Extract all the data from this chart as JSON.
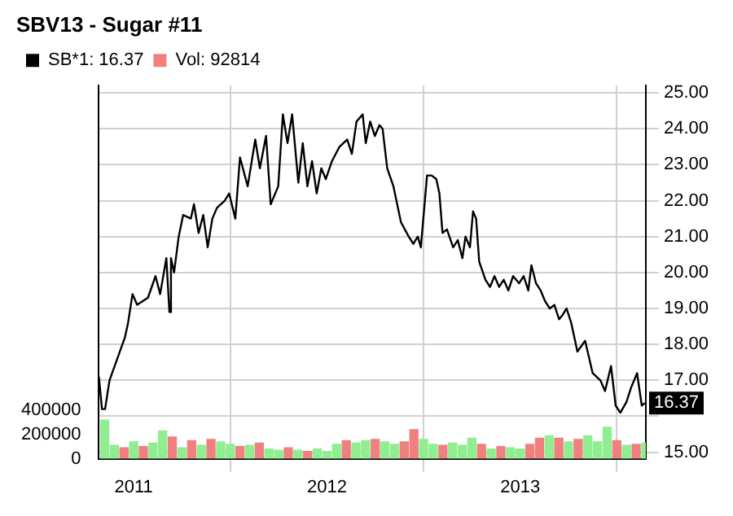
{
  "chart_data": {
    "type": "line",
    "title": "SBV13 - Sugar #11",
    "xlim": [
      2010.82,
      2013.65
    ],
    "xticks": [
      2011,
      2012,
      2013
    ],
    "ylim": [
      14.82,
      25.2
    ],
    "yticks": [
      {
        "value": 15,
        "label": "15.00"
      },
      {
        "value": 16,
        "label": null
      },
      {
        "value": 17,
        "label": "17.00"
      },
      {
        "value": 18,
        "label": "18.00"
      },
      {
        "value": 19,
        "label": "19.00"
      },
      {
        "value": 20,
        "label": "20.00"
      },
      {
        "value": 21,
        "label": "21.00"
      },
      {
        "value": 22,
        "label": "22.00"
      },
      {
        "value": 23,
        "label": "23.00"
      },
      {
        "value": 24,
        "label": "24.00"
      },
      {
        "value": 25,
        "label": "25.00"
      }
    ],
    "y2lim": [
      0,
      3090000
    ],
    "y2ticks": [
      0,
      200000,
      400000
    ],
    "grid": true,
    "legend": "top left",
    "marker": "none",
    "line_style": "solid",
    "annotations": [
      {
        "text": "16.37",
        "x": 2013.645,
        "y": 16.37
      }
    ],
    "series": [
      {
        "name": "SB*1: 16.37",
        "color": "#000000",
        "x": [
          2010.82,
          2010.836,
          2010.852,
          2010.875,
          2010.915,
          2010.955,
          2010.971,
          2010.994,
          2011.018,
          2011.074,
          2011.113,
          2011.137,
          2011.169,
          2011.185,
          2011.193,
          2011.209,
          2011.233,
          2011.256,
          2011.296,
          2011.312,
          2011.336,
          2011.36,
          2011.383,
          2011.407,
          2011.431,
          2011.471,
          2011.494,
          2011.526,
          2011.55,
          2011.59,
          2011.629,
          2011.653,
          2011.685,
          2011.709,
          2011.748,
          2011.772,
          2011.796,
          2011.82,
          2011.852,
          2011.875,
          2011.899,
          2011.923,
          2011.947,
          2011.971,
          2011.994,
          2012.026,
          2012.065,
          2012.105,
          2012.129,
          2012.153,
          2012.185,
          2012.201,
          2012.224,
          2012.248,
          2012.272,
          2012.288,
          2012.312,
          2012.344,
          2012.383,
          2012.423,
          2012.447,
          2012.47,
          2012.486,
          2012.518,
          2012.542,
          2012.566,
          2012.582,
          2012.598,
          2012.621,
          2012.653,
          2012.677,
          2012.701,
          2012.717,
          2012.74,
          2012.756,
          2012.772,
          2012.788,
          2012.82,
          2012.844,
          2012.867,
          2012.891,
          2012.915,
          2012.939,
          2012.963,
          2012.994,
          2013.018,
          2013.042,
          2013.058,
          2013.082,
          2013.106,
          2013.129,
          2013.153,
          2013.177,
          2013.201,
          2013.217,
          2013.24,
          2013.264,
          2013.296,
          2013.336,
          2013.375,
          2013.415,
          2013.439,
          2013.47,
          2013.494,
          2013.518,
          2013.55,
          2013.574,
          2013.605,
          2013.629,
          2013.645
        ],
        "values": [
          17.1,
          16.2,
          16.2,
          17.0,
          17.6,
          18.2,
          18.6,
          19.4,
          19.1,
          19.3,
          19.9,
          19.4,
          20.4,
          18.9,
          20.4,
          20.0,
          21.0,
          21.6,
          21.5,
          21.9,
          21.1,
          21.6,
          20.7,
          21.5,
          21.8,
          22.0,
          22.2,
          21.5,
          23.2,
          22.4,
          23.7,
          22.9,
          23.8,
          21.9,
          22.4,
          24.4,
          23.6,
          24.4,
          22.5,
          23.6,
          22.4,
          23.1,
          22.2,
          22.9,
          22.6,
          23.1,
          23.5,
          23.7,
          23.3,
          24.2,
          24.4,
          23.6,
          24.2,
          23.8,
          24.1,
          24.0,
          22.9,
          22.4,
          21.4,
          21.0,
          20.8,
          21.0,
          20.7,
          22.7,
          22.7,
          22.6,
          22.2,
          21.1,
          21.2,
          20.7,
          20.9,
          20.4,
          21.0,
          20.7,
          21.7,
          21.5,
          20.3,
          19.8,
          19.6,
          19.9,
          19.6,
          19.8,
          19.5,
          19.9,
          19.7,
          19.9,
          19.5,
          20.2,
          19.7,
          19.5,
          19.2,
          19.0,
          19.1,
          18.7,
          18.8,
          19.0,
          18.6,
          17.8,
          18.1,
          17.2,
          17.0,
          16.7,
          17.4,
          16.3,
          16.1,
          16.4,
          16.8,
          17.2,
          16.3,
          16.37
        ]
      },
      {
        "name": "Vol: 92814",
        "type": "bar",
        "axis": "y2",
        "color": "#f08080",
        "x": [
          2010.85,
          2010.9,
          2010.95,
          2011.0,
          2011.05,
          2011.1,
          2011.15,
          2011.2,
          2011.25,
          2011.3,
          2011.35,
          2011.4,
          2011.45,
          2011.5,
          2011.55,
          2011.6,
          2011.65,
          2011.7,
          2011.75,
          2011.8,
          2011.85,
          2011.9,
          2011.95,
          2012.0,
          2012.05,
          2012.1,
          2012.15,
          2012.2,
          2012.25,
          2012.3,
          2012.35,
          2012.4,
          2012.45,
          2012.5,
          2012.55,
          2012.6,
          2012.65,
          2012.7,
          2012.75,
          2012.8,
          2012.85,
          2012.9,
          2012.95,
          2013.0,
          2013.05,
          2013.1,
          2013.15,
          2013.2,
          2013.25,
          2013.3,
          2013.35,
          2013.4,
          2013.45,
          2013.5,
          2013.55,
          2013.6,
          2013.65
        ],
        "values": [
          320000,
          110000,
          90000,
          140000,
          100000,
          130000,
          230000,
          180000,
          90000,
          150000,
          110000,
          160000,
          140000,
          120000,
          100000,
          110000,
          130000,
          80000,
          70000,
          90000,
          70000,
          60000,
          80000,
          60000,
          120000,
          150000,
          130000,
          150000,
          160000,
          140000,
          120000,
          140000,
          240000,
          160000,
          120000,
          110000,
          130000,
          110000,
          170000,
          120000,
          80000,
          100000,
          90000,
          80000,
          120000,
          170000,
          190000,
          170000,
          140000,
          160000,
          190000,
          140000,
          260000,
          150000,
          110000,
          120000,
          130000
        ],
        "colors": [
          "#90ee90",
          "#90ee90",
          "#f08080",
          "#90ee90",
          "#f08080",
          "#90ee90",
          "#90ee90",
          "#f08080",
          "#90ee90",
          "#f08080",
          "#90ee90",
          "#f08080",
          "#90ee90",
          "#90ee90",
          "#f08080",
          "#90ee90",
          "#f08080",
          "#90ee90",
          "#90ee90",
          "#f08080",
          "#90ee90",
          "#f08080",
          "#90ee90",
          "#90ee90",
          "#90ee90",
          "#f08080",
          "#90ee90",
          "#90ee90",
          "#f08080",
          "#90ee90",
          "#90ee90",
          "#f08080",
          "#f08080",
          "#90ee90",
          "#90ee90",
          "#f08080",
          "#90ee90",
          "#90ee90",
          "#90ee90",
          "#f08080",
          "#90ee90",
          "#f08080",
          "#90ee90",
          "#90ee90",
          "#f08080",
          "#f08080",
          "#90ee90",
          "#f08080",
          "#90ee90",
          "#f08080",
          "#90ee90",
          "#90ee90",
          "#90ee90",
          "#f08080",
          "#90ee90",
          "#f08080",
          "#90ee90"
        ]
      }
    ]
  }
}
